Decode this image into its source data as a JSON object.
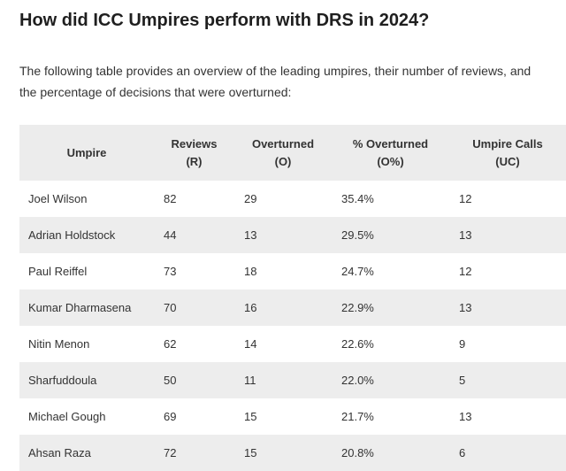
{
  "article": {
    "heading": "How did ICC Umpires perform with DRS in 2024?",
    "intro": "The following table provides an overview of the leading umpires, their number of reviews, and the percentage of decisions that were overturned:"
  },
  "table": {
    "headers": [
      {
        "line1": "Umpire",
        "line2": ""
      },
      {
        "line1": "Reviews",
        "line2": "(R)"
      },
      {
        "line1": "Overturned",
        "line2": "(O)"
      },
      {
        "line1": "% Overturned",
        "line2": "(O%)"
      },
      {
        "line1": "Umpire Calls",
        "line2": "(UC)"
      }
    ],
    "rows": [
      [
        "Joel Wilson",
        "82",
        "29",
        "35.4%",
        "12"
      ],
      [
        "Adrian Holdstock",
        "44",
        "13",
        "29.5%",
        "13"
      ],
      [
        "Paul Reiffel",
        "73",
        "18",
        "24.7%",
        "12"
      ],
      [
        "Kumar Dharmasena",
        "70",
        "16",
        "22.9%",
        "13"
      ],
      [
        "Nitin Menon",
        "62",
        "14",
        "22.6%",
        "9"
      ],
      [
        "Sharfuddoula",
        "50",
        "11",
        "22.0%",
        "5"
      ],
      [
        "Michael Gough",
        "69",
        "15",
        "21.7%",
        "13"
      ],
      [
        "Ahsan Raza",
        "72",
        "15",
        "20.8%",
        "6"
      ]
    ]
  }
}
